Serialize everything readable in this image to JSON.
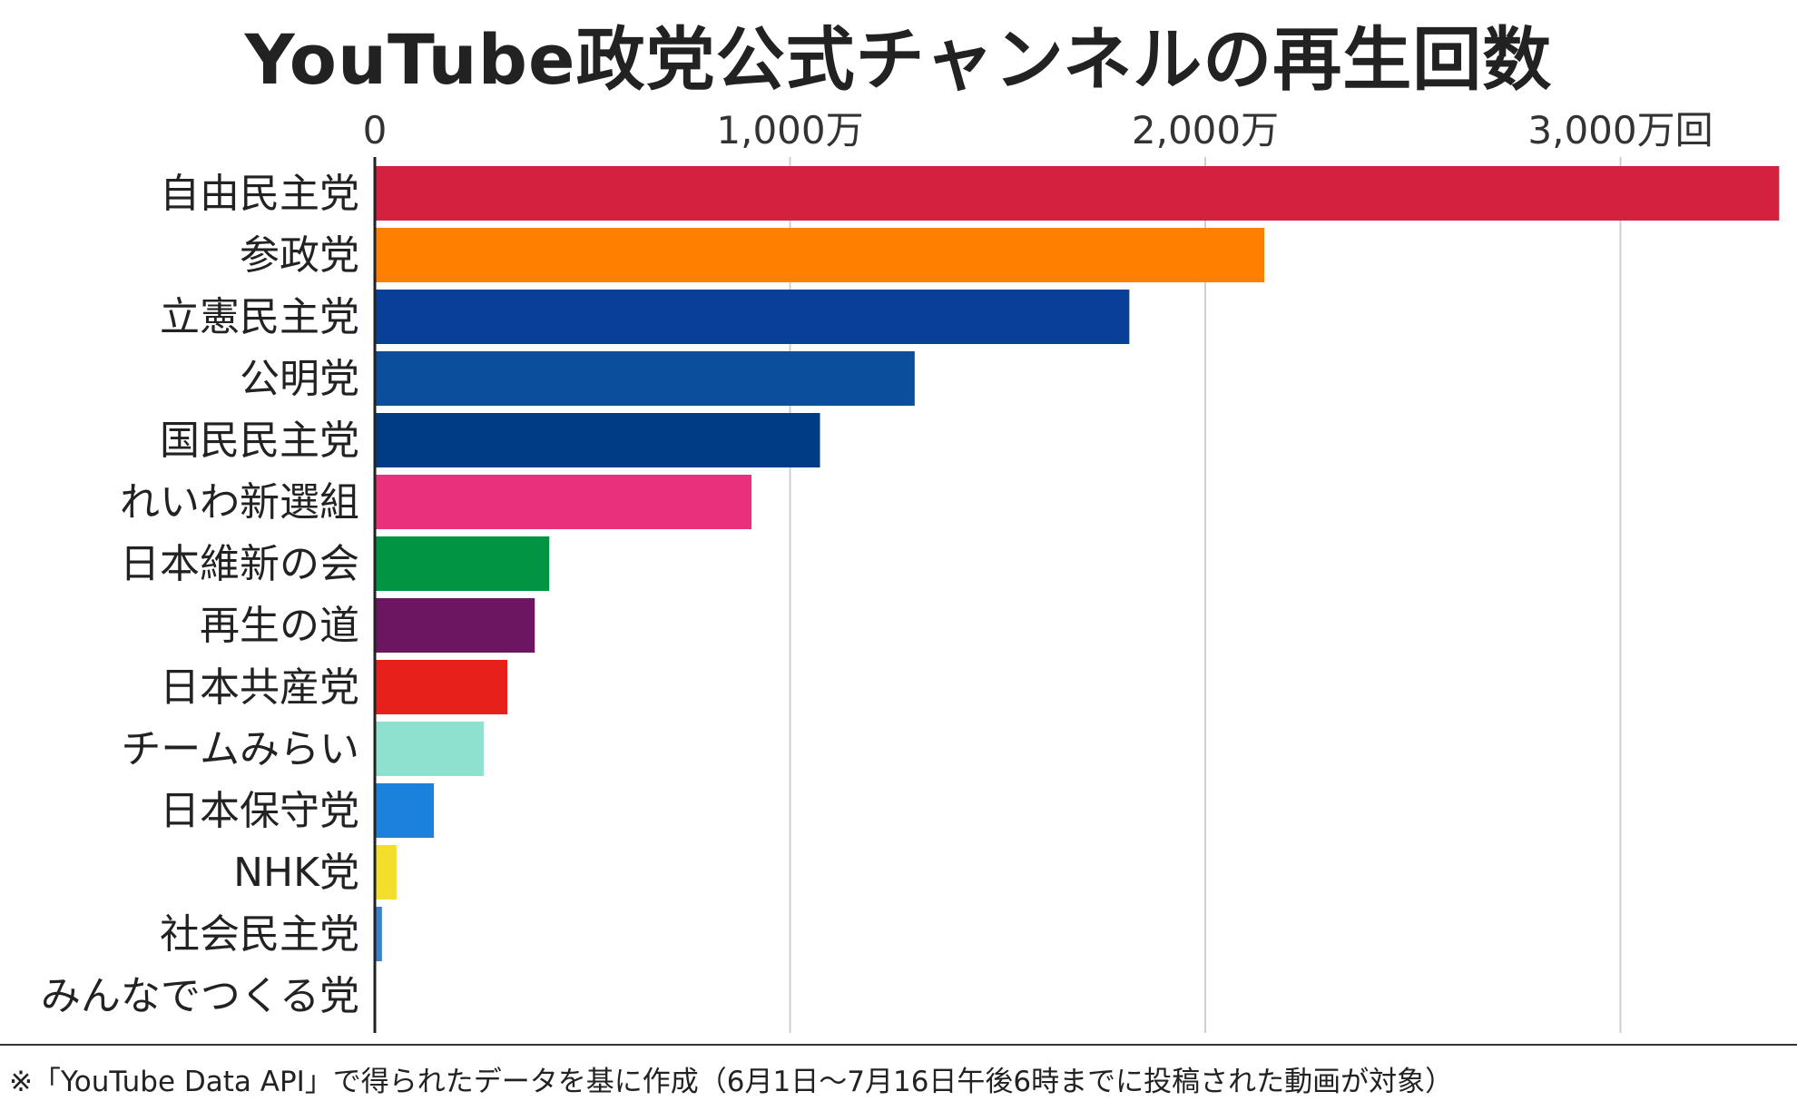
{
  "chart_data": {
    "type": "bar",
    "orientation": "horizontal",
    "title": "YouTube政党公式チャンネルの再生回数",
    "x_ticks": [
      {
        "value": 0,
        "label": "0"
      },
      {
        "value": 1000,
        "label": "1,000万"
      },
      {
        "value": 2000,
        "label": "2,000万"
      },
      {
        "value": 3000,
        "label": "3,000万回"
      }
    ],
    "xlim": [
      0,
      3400
    ],
    "unit_note": "万回",
    "grid": true,
    "categories": [
      "自由民主党",
      "参政党",
      "立憲民主党",
      "公明党",
      "国民民主党",
      "れいわ新選組",
      "日本維新の会",
      "再生の道",
      "日本共産党",
      "チームみらい",
      "日本保守党",
      "NHK党",
      "社会民主党",
      "みんなでつくる党"
    ],
    "values": [
      3380,
      2140,
      1815,
      1298,
      1070,
      905,
      418,
      383,
      317,
      260,
      140,
      50,
      15,
      0
    ],
    "colors": [
      "#d42140",
      "#ff7f00",
      "#0a3f99",
      "#0a4f9a",
      "#003c86",
      "#e8307c",
      "#009543",
      "#6c1560",
      "#e8201c",
      "#8ee0cf",
      "#1a82dc",
      "#f3de2c",
      "#3b7fd0",
      "#bbbbbb"
    ]
  },
  "footnote": "※「YouTube Data API」で得られたデータを基に作成（6月1日〜7月16日午後6時までに投稿された動画が対象）"
}
